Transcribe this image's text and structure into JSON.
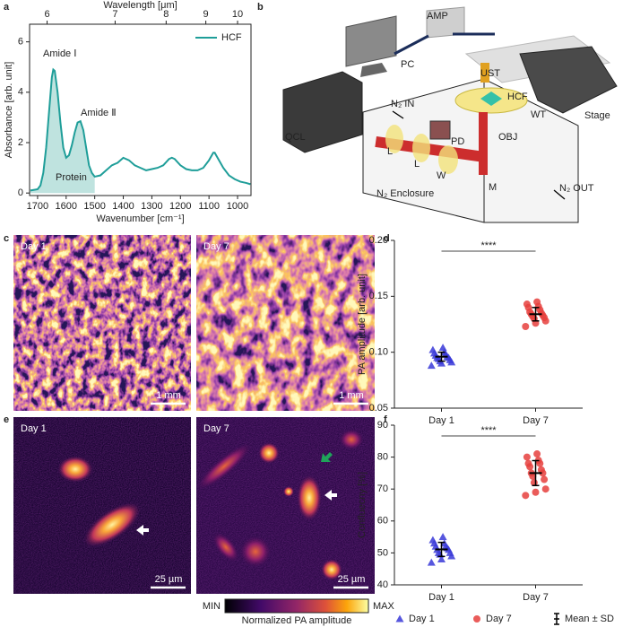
{
  "panel_labels": [
    "a",
    "b",
    "c",
    "d",
    "e",
    "f"
  ],
  "chart_data": [
    {
      "type": "line",
      "xlabel": "Wavenumber [cm⁻¹]",
      "ylabel": "Absorbance [arb. unit]",
      "x2label": "Wavelength [μm]",
      "x": [
        1725,
        1700,
        1690,
        1680,
        1670,
        1660,
        1650,
        1645,
        1640,
        1630,
        1620,
        1610,
        1600,
        1590,
        1580,
        1570,
        1560,
        1550,
        1540,
        1530,
        1520,
        1510,
        1500,
        1480,
        1460,
        1440,
        1420,
        1400,
        1380,
        1360,
        1340,
        1320,
        1300,
        1280,
        1260,
        1240,
        1230,
        1220,
        1200,
        1180,
        1160,
        1140,
        1120,
        1100,
        1085,
        1080,
        1070,
        1050,
        1030,
        1010,
        990,
        970,
        955
      ],
      "series": [
        {
          "name": "HCF",
          "color": "#1f9e99",
          "values": [
            0.1,
            0.15,
            0.3,
            0.8,
            1.8,
            3.2,
            4.6,
            4.9,
            4.85,
            4.0,
            2.8,
            1.8,
            1.4,
            1.5,
            1.9,
            2.4,
            2.8,
            2.85,
            2.5,
            1.8,
            1.1,
            0.8,
            0.65,
            0.7,
            0.9,
            1.1,
            1.2,
            1.4,
            1.3,
            1.1,
            1.0,
            0.9,
            0.95,
            1.0,
            1.1,
            1.35,
            1.4,
            1.35,
            1.1,
            0.95,
            0.9,
            0.9,
            1.0,
            1.3,
            1.6,
            1.6,
            1.4,
            1.0,
            0.7,
            0.55,
            0.45,
            0.4,
            0.35
          ]
        }
      ],
      "xlim": [
        1728,
        953
      ],
      "ylim": [
        -0.1,
        6.7
      ],
      "xticks": [
        1700,
        1600,
        1500,
        1400,
        1300,
        1200,
        1100,
        1000
      ],
      "yticks": [
        0,
        2,
        4,
        6
      ],
      "x2ticks": [
        6,
        7,
        8,
        9,
        10
      ],
      "annotations": [
        "Amide Ⅰ",
        "Amide Ⅱ",
        "Protein"
      ],
      "shaded_xlim": [
        1728,
        1500
      ],
      "shade_color": "#bfe3df",
      "legend": "upper right"
    },
    {
      "type": "scatter",
      "ylabel": "PA amplitude [arb. unit]",
      "categories": [
        "Day 1",
        "Day 7"
      ],
      "series": [
        {
          "color": "#3a3ad8",
          "marker": "triangle",
          "values": [
            0.088,
            0.09,
            0.091,
            0.092,
            0.093,
            0.094,
            0.095,
            0.095,
            0.096,
            0.097,
            0.098,
            0.099,
            0.1,
            0.102,
            0.104
          ]
        },
        {
          "color": "#e6403d",
          "marker": "circle",
          "values": [
            0.123,
            0.126,
            0.128,
            0.13,
            0.131,
            0.132,
            0.133,
            0.134,
            0.135,
            0.136,
            0.138,
            0.14,
            0.141,
            0.143,
            0.145
          ]
        }
      ],
      "mean": [
        0.096,
        0.134
      ],
      "sd": [
        0.004,
        0.006
      ],
      "ylim": [
        0.05,
        0.2
      ],
      "yticks": [
        0.05,
        {
          "value": 0.1,
          "label": "0.10"
        },
        0.15,
        {
          "value": 0.2,
          "label": "0.20"
        }
      ],
      "significance": "****"
    },
    {
      "type": "scatter",
      "ylabel": "Confluecny [%]",
      "categories": [
        "Day 1",
        "Day 7"
      ],
      "series": [
        {
          "name": "Day 1",
          "color": "#3a3ad8",
          "marker": "triangle",
          "values": [
            47,
            48,
            49,
            49.5,
            50,
            50,
            51,
            51,
            51.5,
            52,
            52,
            53,
            53,
            54,
            55
          ]
        },
        {
          "name": "Day 7",
          "color": "#e6403d",
          "marker": "circle",
          "values": [
            68,
            69,
            70,
            72,
            73,
            74,
            75,
            75,
            76,
            77,
            78,
            78,
            79,
            80,
            81
          ]
        }
      ],
      "mean": [
        51.1,
        75.0
      ],
      "sd": [
        2.2,
        3.9
      ],
      "mean_label": "Mean ± SD",
      "ylim": [
        40,
        90
      ],
      "yticks": [
        40,
        50,
        60,
        70,
        80,
        90
      ],
      "significance": "****",
      "legend": "bottom"
    }
  ],
  "diagram": {
    "labels": [
      "AMP",
      "PC",
      "UST",
      "HCF",
      "WT",
      "Stage",
      "QCL",
      "N₂ IN",
      "PD",
      "OBJ",
      "L",
      "L",
      "W",
      "M",
      "N₂ Enclosure",
      "N₂ OUT"
    ]
  },
  "images": {
    "c": {
      "titles": [
        "Day 1",
        "Day 7"
      ],
      "scale_bars": [
        "1 mm",
        "1 mm"
      ]
    },
    "e": {
      "titles": [
        "Day 1",
        "Day 7"
      ],
      "scale_bars": [
        "25 µm",
        "25 µm"
      ]
    },
    "colorbar": {
      "min": "MIN",
      "max": "MAX",
      "label": "Normalized PA amplitude"
    }
  }
}
